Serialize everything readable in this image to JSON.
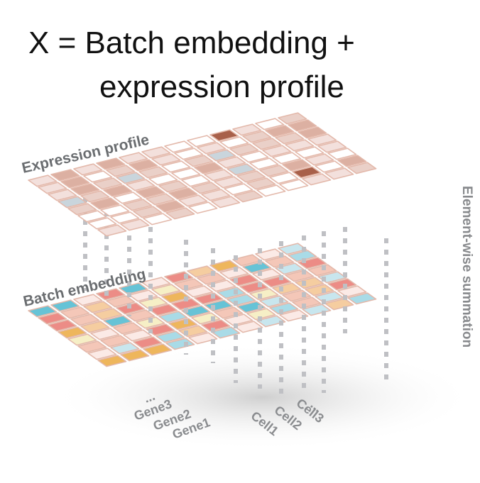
{
  "formula": {
    "line1": "X = Batch embedding +",
    "line2": "expression profile"
  },
  "layers": {
    "expression_label": "Expression profile",
    "batch_label": "Batch embedding"
  },
  "side_label": "Element-wise summation",
  "gene_labels": [
    "...",
    "Gene3",
    "Gene2",
    "Gene1"
  ],
  "cell_labels": [
    "Cell1",
    "Cell2",
    "Cell3",
    "..."
  ],
  "colors": {
    "expression_palette": [
      "#ffffff",
      "#f3e0dc",
      "#ead0c8",
      "#dcb0a2",
      "#c9d5dc",
      "#a8604a"
    ],
    "batch_palette": [
      "#fbeae6",
      "#f4c7b8",
      "#ec8c86",
      "#f5cda0",
      "#eeb65c",
      "#f6efc6",
      "#a9dbe7",
      "#66c3d6",
      "#c8e6ee"
    ],
    "cell_border": "#e3b8aa",
    "connector": "#bfc0c4"
  }
}
